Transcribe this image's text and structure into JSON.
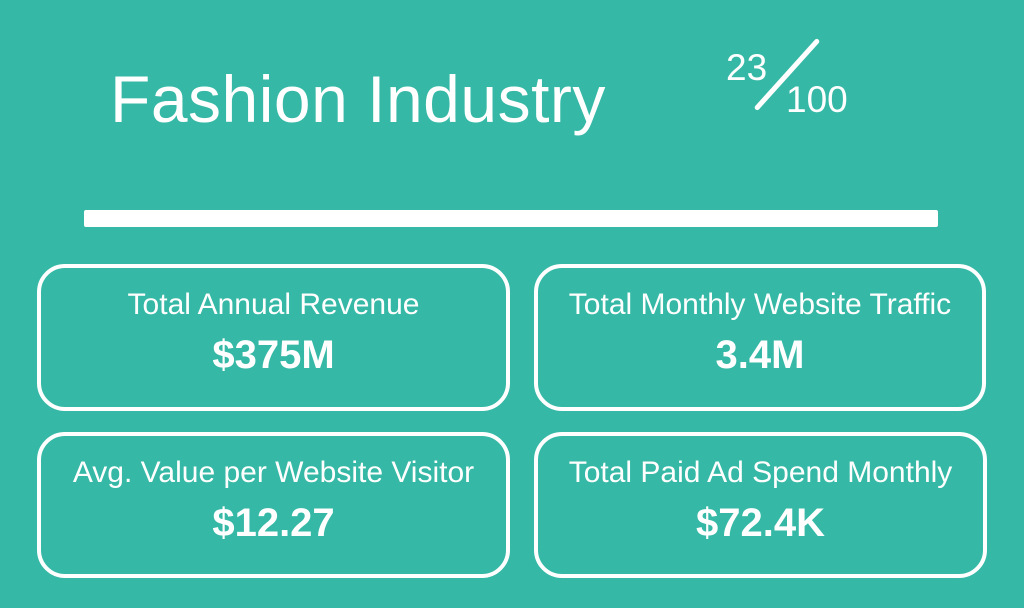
{
  "colors": {
    "background": "#35b9a6",
    "text": "#ffffff"
  },
  "header": {
    "title": "Fashion Industry",
    "score": {
      "numerator": "23",
      "denominator": "100"
    }
  },
  "cards": [
    {
      "label": "Total Annual Revenue",
      "value": "$375M"
    },
    {
      "label": "Total Monthly Website Traffic",
      "value": "3.4M"
    },
    {
      "label": "Avg. Value per Website Visitor",
      "value": "$12.27"
    },
    {
      "label": "Total Paid Ad Spend Monthly",
      "value": "$72.4K"
    }
  ]
}
